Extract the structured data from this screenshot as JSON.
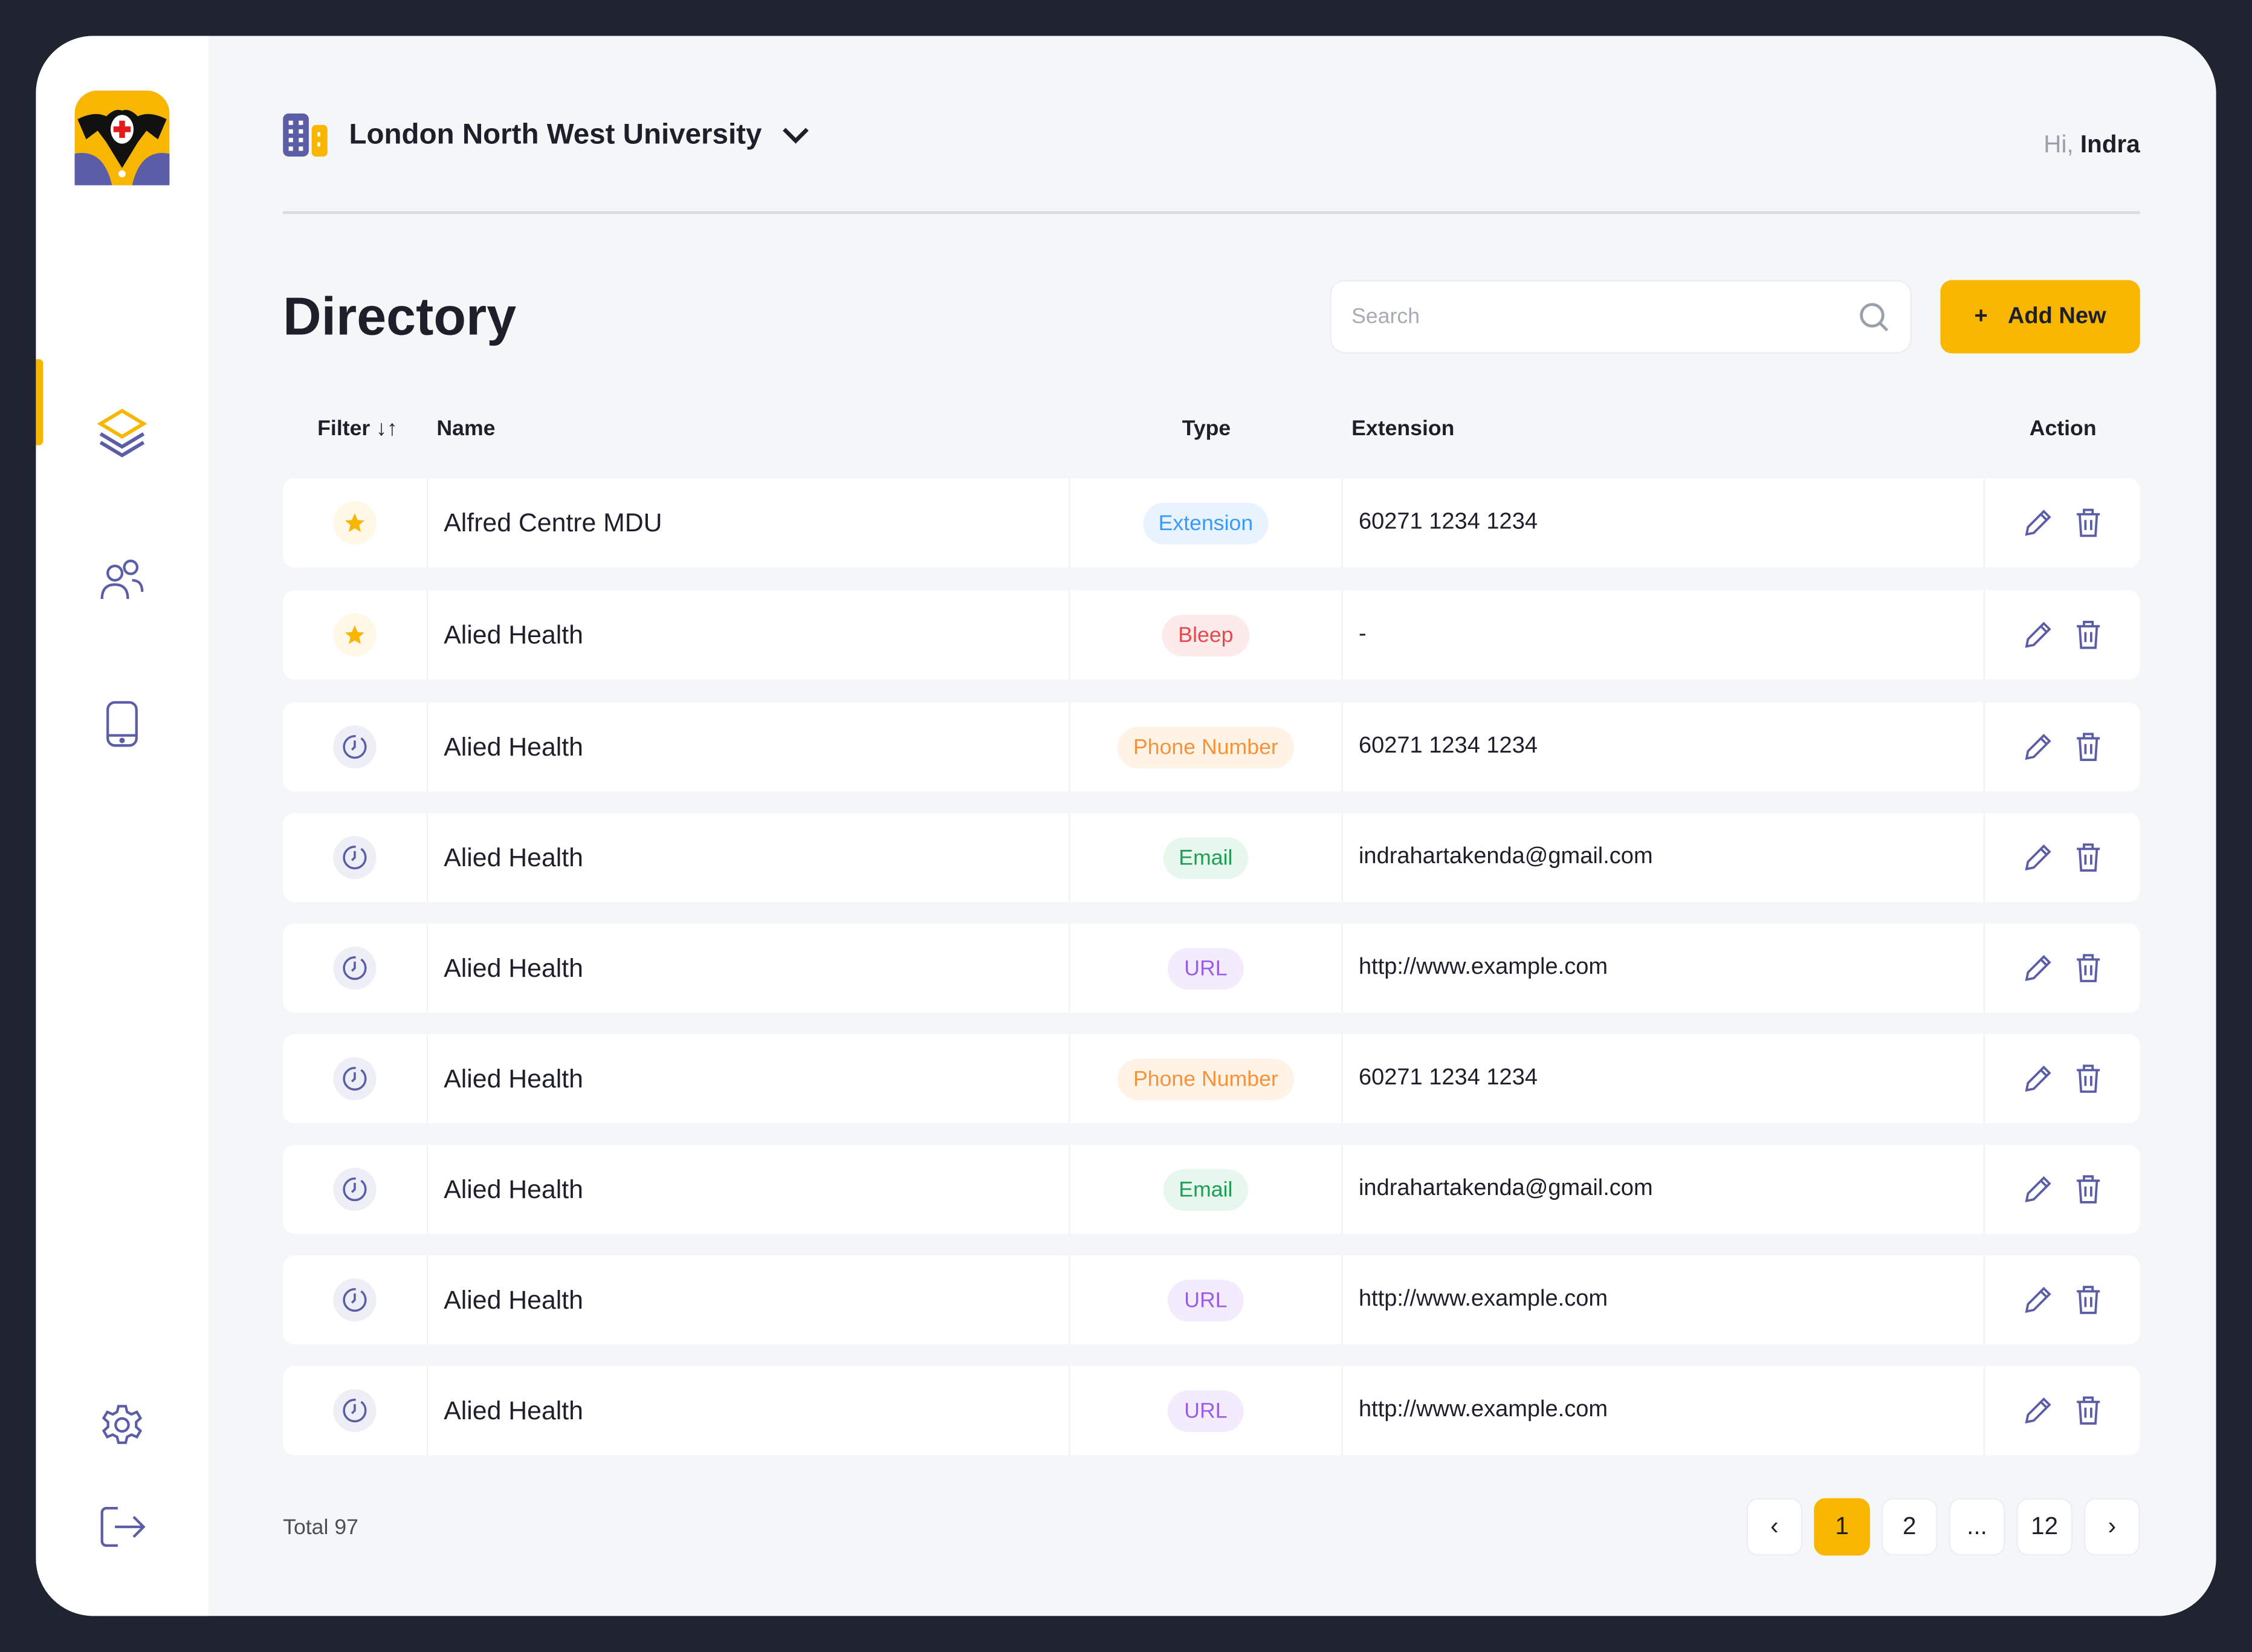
{
  "org": {
    "name": "London North West University"
  },
  "greeting": {
    "prefix": "Hi,",
    "user": "Indra"
  },
  "page_title": "Directory",
  "search": {
    "placeholder": "Search",
    "value": ""
  },
  "add_button": {
    "icon": "+",
    "label": "Add New"
  },
  "columns": {
    "filter": "Filter ↓↑",
    "name": "Name",
    "type": "Type",
    "extension": "Extension",
    "action": "Action"
  },
  "colors": {
    "accent": "#f8b600",
    "icon": "#5b5ea6"
  },
  "rows": [
    {
      "fav": true,
      "name": "Alfred Centre MDU",
      "type": "Extension",
      "ext": "60271 1234 1234"
    },
    {
      "fav": true,
      "name": "Alied Health",
      "type": "Bleep",
      "ext": "-"
    },
    {
      "fav": false,
      "name": "Alied Health",
      "type": "Phone Number",
      "ext": "60271 1234 1234"
    },
    {
      "fav": false,
      "name": "Alied Health",
      "type": "Email",
      "ext": "indrahartakenda@gmail.com"
    },
    {
      "fav": false,
      "name": "Alied Health",
      "type": "URL",
      "ext": "http://www.example.com"
    },
    {
      "fav": false,
      "name": "Alied Health",
      "type": "Phone Number",
      "ext": "60271 1234 1234"
    },
    {
      "fav": false,
      "name": "Alied Health",
      "type": "Email",
      "ext": "indrahartakenda@gmail.com"
    },
    {
      "fav": false,
      "name": "Alied Health",
      "type": "URL",
      "ext": "http://www.example.com"
    },
    {
      "fav": false,
      "name": "Alied Health",
      "type": "URL",
      "ext": "http://www.example.com"
    }
  ],
  "total": "Total 97",
  "pagination": {
    "prev": "‹",
    "pages": [
      "1",
      "2",
      "...",
      "12"
    ],
    "current": "1",
    "next": "›"
  }
}
